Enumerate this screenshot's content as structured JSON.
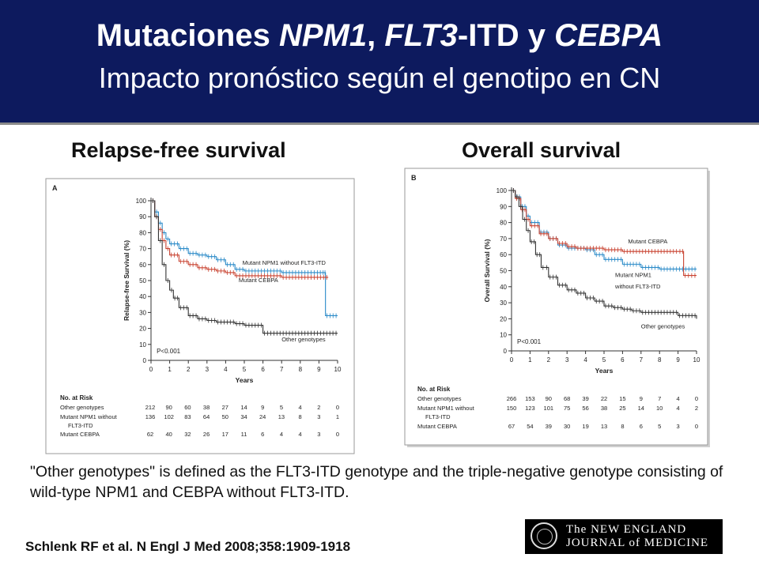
{
  "header": {
    "title_parts": [
      "Mutaciones ",
      "NPM1",
      ", ",
      "FLT3",
      "-ITD y ",
      "CEBPA"
    ],
    "subtitle": "Impacto pronóstico según el genotipo en CN"
  },
  "panel_titles": [
    "Relapse-free survival",
    "Overall survival"
  ],
  "footnote": "\"Other genotypes\" is defined as the FLT3-ITD genotype and the triple-negative genotype consisting of wild-type NPM1 and CEBPA without FLT3-ITD.",
  "citation": "Schlenk RF et al. N Engl J Med 2008;358:1909-1918",
  "logo": {
    "line1": "The NEW ENGLAND",
    "line2": "JOURNAL of MEDICINE"
  },
  "chart_data": [
    {
      "type": "line",
      "panel_letter": "A",
      "ylabel": "Relapse-free Survival (%)",
      "xlabel": "Years",
      "xlim": [
        0,
        10
      ],
      "ylim": [
        0,
        100
      ],
      "x_ticks": [
        0,
        1,
        2,
        3,
        4,
        5,
        6,
        7,
        8,
        9,
        10
      ],
      "y_ticks": [
        0,
        10,
        20,
        30,
        40,
        50,
        60,
        70,
        80,
        90,
        100
      ],
      "p_value": "P<0.001",
      "colors": {
        "npm1": "#2a8ac8",
        "cebpa": "#c8412f",
        "other": "#333333"
      },
      "series": [
        {
          "name": "Mutant NPM1 without FLT3-ITD",
          "key": "npm1",
          "x": [
            0,
            0.2,
            0.4,
            0.6,
            0.8,
            1,
            1.5,
            2,
            2.5,
            3,
            3.5,
            4,
            4.5,
            5,
            6,
            7,
            8,
            9,
            9.3,
            9.35,
            10
          ],
          "y": [
            100,
            93,
            86,
            80,
            76,
            73,
            70,
            67,
            66,
            65,
            63,
            60,
            57,
            56,
            56,
            55,
            55,
            55,
            55,
            28,
            28
          ]
        },
        {
          "name": "Mutant CEBPA",
          "key": "cebpa",
          "x": [
            0,
            0.2,
            0.4,
            0.6,
            0.8,
            1,
            1.5,
            2,
            2.5,
            3,
            3.5,
            4,
            4.5,
            5,
            6,
            7,
            8,
            9,
            9.5
          ],
          "y": [
            100,
            90,
            82,
            75,
            70,
            66,
            62,
            60,
            58,
            57,
            56,
            55,
            53,
            53,
            53,
            52,
            52,
            52,
            52
          ]
        },
        {
          "name": "Other genotypes",
          "key": "other",
          "x": [
            0,
            0.2,
            0.4,
            0.6,
            0.8,
            1,
            1.2,
            1.5,
            2,
            2.5,
            3,
            3.5,
            4,
            4.5,
            5,
            5.5,
            6,
            7,
            8,
            9,
            10
          ],
          "y": [
            100,
            90,
            75,
            60,
            50,
            44,
            39,
            33,
            28,
            26,
            25,
            24,
            24,
            23,
            22,
            22,
            17,
            17,
            17,
            17,
            17
          ]
        }
      ],
      "curve_labels": [
        {
          "text": "Mutant NPM1 without FLT3-ITD",
          "x": 4.9,
          "y": 60
        },
        {
          "text": "Mutant CEBPA",
          "x": 4.7,
          "y": 49
        },
        {
          "text": "Other genotypes",
          "x": 7.0,
          "y": 12
        }
      ],
      "risk_table": {
        "title": "No. at Risk",
        "rows": [
          {
            "label": "Other genotypes",
            "values": [
              212,
              90,
              60,
              38,
              27,
              14,
              9,
              5,
              4,
              2,
              0
            ]
          },
          {
            "label": "Mutant NPM1 without FLT3-ITD",
            "values": [
              136,
              102,
              83,
              64,
              50,
              34,
              24,
              13,
              8,
              3,
              1
            ]
          },
          {
            "label": "Mutant CEBPA",
            "values": [
              62,
              40,
              32,
              26,
              17,
              11,
              6,
              4,
              4,
              3,
              0
            ]
          }
        ]
      }
    },
    {
      "type": "line",
      "panel_letter": "B",
      "ylabel": "Overall Survival (%)",
      "xlabel": "Years",
      "xlim": [
        0,
        10
      ],
      "ylim": [
        0,
        100
      ],
      "x_ticks": [
        0,
        1,
        2,
        3,
        4,
        5,
        6,
        7,
        8,
        9,
        10
      ],
      "y_ticks": [
        0,
        10,
        20,
        30,
        40,
        50,
        60,
        70,
        80,
        90,
        100
      ],
      "p_value": "P<0.001",
      "colors": {
        "npm1": "#2a8ac8",
        "cebpa": "#c8412f",
        "other": "#333333"
      },
      "series": [
        {
          "name": "Mutant NPM1 without FLT3-ITD",
          "key": "npm1",
          "x": [
            0,
            0.2,
            0.5,
            0.8,
            1,
            1.5,
            2,
            2.5,
            3,
            3.5,
            4,
            4.5,
            5,
            6,
            7,
            8,
            9,
            9.5,
            10
          ],
          "y": [
            100,
            96,
            90,
            84,
            80,
            74,
            70,
            66,
            64,
            64,
            63,
            60,
            57,
            54,
            52,
            51,
            51,
            51,
            51
          ]
        },
        {
          "name": "Mutant CEBPA",
          "key": "cebpa",
          "x": [
            0,
            0.2,
            0.5,
            0.8,
            1,
            1.5,
            2,
            2.5,
            3,
            3.5,
            4,
            5,
            6,
            7,
            8,
            9,
            9.2,
            9.3,
            10
          ],
          "y": [
            100,
            95,
            88,
            82,
            78,
            73,
            70,
            67,
            65,
            64,
            64,
            63,
            62,
            62,
            62,
            62,
            62,
            47,
            47
          ]
        },
        {
          "name": "Other genotypes",
          "key": "other",
          "x": [
            0,
            0.2,
            0.4,
            0.6,
            0.8,
            1,
            1.3,
            1.6,
            2,
            2.5,
            3,
            3.5,
            4,
            4.5,
            5,
            5.5,
            6,
            6.5,
            7,
            8,
            9,
            10
          ],
          "y": [
            100,
            96,
            90,
            82,
            75,
            68,
            60,
            52,
            46,
            41,
            38,
            36,
            33,
            31,
            28,
            27,
            26,
            25,
            24,
            24,
            22,
            20
          ]
        }
      ],
      "curve_labels": [
        {
          "text": "Mutant CEBPA",
          "x": 6.3,
          "y": 67
        },
        {
          "text": "Mutant NPM1",
          "x": 5.6,
          "y": 46
        },
        {
          "text": "without FLT3-ITD",
          "x": 5.6,
          "y": 39
        },
        {
          "text": "Other genotypes",
          "x": 7.0,
          "y": 14
        }
      ],
      "risk_table": {
        "title": "No. at Risk",
        "rows": [
          {
            "label": "Other genotypes",
            "values": [
              266,
              153,
              90,
              68,
              39,
              22,
              15,
              9,
              7,
              4,
              0
            ]
          },
          {
            "label": "Mutant NPM1 without FLT3-ITD",
            "values": [
              150,
              123,
              101,
              75,
              56,
              38,
              25,
              14,
              10,
              4,
              2
            ]
          },
          {
            "label": "Mutant CEBPA",
            "values": [
              67,
              54,
              39,
              30,
              19,
              13,
              8,
              6,
              5,
              3,
              0
            ]
          }
        ]
      }
    }
  ]
}
